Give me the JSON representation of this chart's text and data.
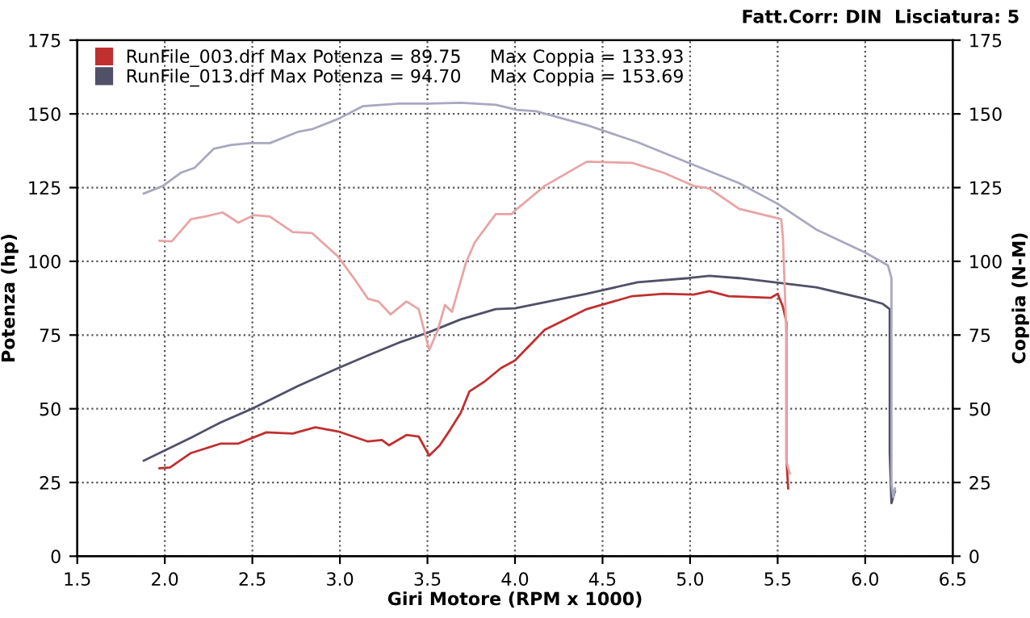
{
  "chart_data": {
    "type": "line",
    "xlabel": "Giri Motore (RPM x 1000)",
    "ylabel": "Potenza (hp)",
    "y2label": "Coppia (N-M)",
    "annotations": [
      "Fatt.Corr: DIN  Lisciatura: 5"
    ],
    "xlim": [
      1.5,
      6.5
    ],
    "xticks": [
      {
        "value": 1.5,
        "label": "1.5"
      },
      {
        "value": 2.0,
        "label": "2.0"
      },
      {
        "value": 2.5,
        "label": "2.5"
      },
      {
        "value": 3.0,
        "label": "3.0"
      },
      {
        "value": 3.5,
        "label": "3.5"
      },
      {
        "value": 4.0,
        "label": "4.0"
      },
      {
        "value": 4.5,
        "label": "4.5"
      },
      {
        "value": 5.0,
        "label": "5.0"
      },
      {
        "value": 5.5,
        "label": "5.5"
      },
      {
        "value": 6.0,
        "label": "6.0"
      },
      {
        "value": 6.5,
        "label": "6.5"
      }
    ],
    "ylim": [
      0,
      175
    ],
    "yticks": [
      0,
      25,
      50,
      75,
      100,
      125,
      150,
      175
    ],
    "y2lim": [
      0,
      175
    ],
    "y2ticks": [
      0,
      25,
      50,
      75,
      100,
      125,
      150,
      175
    ],
    "grid": true,
    "legend": "top left",
    "line_style": "solid",
    "marker": "none",
    "series": [
      {
        "name": "RunFile_003.drf Max Potenza = 89.75     Max Coppia = 133.93",
        "color": "#c03030",
        "x": [
          1.97,
          2.03,
          2.15,
          2.32,
          2.42,
          2.58,
          2.73,
          2.86,
          2.99,
          3.16,
          3.24,
          3.28,
          3.38,
          3.45,
          3.51,
          3.57,
          3.63,
          3.69,
          3.74,
          3.83,
          3.92,
          4.0,
          4.17,
          4.41,
          4.67,
          4.85,
          5.02,
          5.11,
          5.22,
          5.46,
          5.5,
          5.53,
          5.55,
          5.55,
          5.55,
          5.56
        ],
        "values": [
          29.8,
          30.1,
          35,
          38.2,
          38.2,
          42,
          41.6,
          43.7,
          42.3,
          38.9,
          39.4,
          37.6,
          41.1,
          40.6,
          34.1,
          37.6,
          42.9,
          48.6,
          55.9,
          59.4,
          63.8,
          66.4,
          76.8,
          83.8,
          88.2,
          89,
          88.7,
          89.9,
          88.2,
          87.6,
          89,
          84.6,
          79.4,
          65,
          33,
          23
        ]
      },
      {
        "color": "#e8a4a4",
        "axis": "y2",
        "x": [
          1.97,
          2.04,
          2.15,
          2.23,
          2.33,
          2.42,
          2.51,
          2.6,
          2.73,
          2.84,
          2.99,
          3.09,
          3.16,
          3.22,
          3.29,
          3.38,
          3.45,
          3.51,
          3.56,
          3.6,
          3.64,
          3.72,
          3.77,
          3.89,
          3.98,
          4.0,
          4.17,
          4.41,
          4.67,
          4.85,
          5.02,
          5.11,
          5.28,
          5.46,
          5.52,
          5.53,
          5.55,
          5.55,
          5.57
        ],
        "values": [
          107,
          106.8,
          114.3,
          115.2,
          116.6,
          113.1,
          115.7,
          115.2,
          109.9,
          109.6,
          101.6,
          93.4,
          87.3,
          86.4,
          82,
          86.4,
          83.8,
          69.9,
          76.8,
          85.2,
          82.9,
          99.5,
          106.4,
          116,
          116,
          117.2,
          125.6,
          133.8,
          133.4,
          130,
          125.6,
          124.7,
          117.8,
          115.2,
          114.3,
          108.2,
          75,
          32,
          28
        ]
      },
      {
        "name": "RunFile_013.drf Max Potenza = 94.70     Max Coppia = 153.69",
        "color": "#505068",
        "x": [
          1.88,
          2.15,
          2.32,
          2.49,
          2.76,
          2.99,
          3.16,
          3.34,
          3.51,
          3.69,
          3.89,
          4.0,
          4.41,
          4.7,
          4.99,
          5.11,
          5.28,
          5.52,
          5.72,
          6.0,
          6.1,
          6.14,
          6.14,
          6.14,
          6.15,
          6.17
        ],
        "values": [
          32.4,
          40.2,
          45.4,
          49.8,
          57.7,
          63.8,
          68.1,
          72.5,
          76,
          80.3,
          83.8,
          84.1,
          89,
          92.9,
          94.3,
          95.1,
          94.3,
          92.6,
          91.2,
          87.3,
          85.6,
          83.8,
          61.2,
          35,
          18,
          22
        ]
      },
      {
        "color": "#a8a8c0",
        "axis": "y2",
        "x": [
          1.88,
          1.99,
          2.09,
          2.17,
          2.28,
          2.38,
          2.49,
          2.6,
          2.76,
          2.84,
          2.99,
          3.13,
          3.34,
          3.51,
          3.69,
          3.89,
          4.01,
          4.12,
          4.41,
          4.7,
          4.99,
          5.28,
          5.5,
          5.72,
          6.0,
          6.13,
          6.15,
          6.15,
          6.16,
          6.17
        ],
        "values": [
          123,
          125.6,
          130,
          131.7,
          138.2,
          139.5,
          140.1,
          140.1,
          143.9,
          144.8,
          148.3,
          152.6,
          153.5,
          153.5,
          153.8,
          153.1,
          151.4,
          150.9,
          146.2,
          140.4,
          133.4,
          126.5,
          119.5,
          110.8,
          103,
          98.6,
          94.3,
          24.6,
          20,
          23
        ]
      }
    ]
  }
}
